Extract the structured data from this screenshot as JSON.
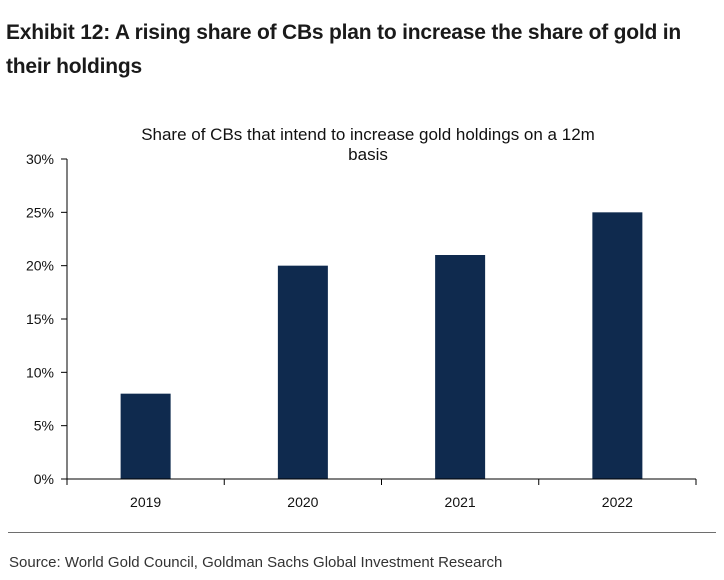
{
  "exhibit": {
    "title": "Exhibit 12: A rising share of CBs plan to increase the share of gold in their holdings"
  },
  "source": "Source: World Gold Council, Goldman Sachs Global Investment Research",
  "chart_data": {
    "type": "bar",
    "title_lines": [
      "Share of CBs that intend to increase gold holdings on a 12m",
      "basis"
    ],
    "categories": [
      "2019",
      "2020",
      "2021",
      "2022"
    ],
    "values": [
      8,
      20,
      21,
      25
    ],
    "ylim": [
      0,
      30
    ],
    "yticks": [
      0,
      5,
      10,
      15,
      20,
      25,
      30
    ],
    "ytick_labels": [
      "0%",
      "5%",
      "10%",
      "15%",
      "20%",
      "25%",
      "30%"
    ],
    "xlabel": "",
    "ylabel": "",
    "grid": false,
    "legend": "none",
    "bar_color": "#0f2a4e"
  }
}
